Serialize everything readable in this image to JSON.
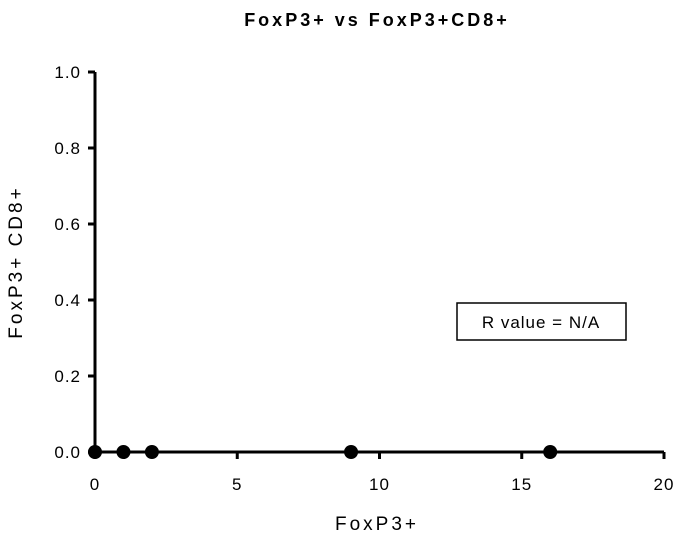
{
  "chart_data": {
    "type": "scatter",
    "title": "FoxP3+ vs FoxP3+CD8+",
    "xlabel": "FoxP3+",
    "ylabel": "FoxP3+ CD8+",
    "xlim": [
      0,
      20
    ],
    "ylim": [
      0,
      1.0
    ],
    "x_ticks": [
      "0",
      "5",
      "10",
      "15",
      "20"
    ],
    "y_ticks": [
      "0.0",
      "0.2",
      "0.4",
      "0.6",
      "0.8",
      "1.0"
    ],
    "points": [
      {
        "x": 0,
        "y": 0
      },
      {
        "x": 1,
        "y": 0
      },
      {
        "x": 2,
        "y": 0
      },
      {
        "x": 9,
        "y": 0
      },
      {
        "x": 16,
        "y": 0
      }
    ],
    "annotation": "R value = N/A",
    "grid": false,
    "colors": {
      "axis": "#000000",
      "marker": "#000000"
    }
  }
}
